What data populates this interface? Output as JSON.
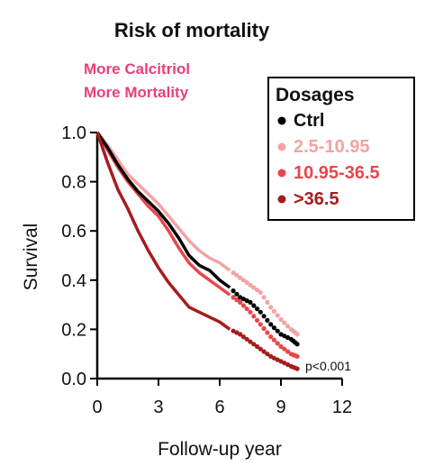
{
  "chart_data": {
    "type": "line",
    "title": "Risk of mortality",
    "annotation": [
      "More Calcitriol",
      "More Mortality"
    ],
    "annotation_color": "#e8417a",
    "xlabel": "Follow-up year",
    "ylabel": "Survival",
    "xlim": [
      0,
      12
    ],
    "ylim": [
      0,
      1.0
    ],
    "x_ticks": [
      0,
      3,
      6,
      9,
      12
    ],
    "x_tick_labels": [
      "0",
      "3",
      "6",
      "9",
      "12"
    ],
    "y_ticks": [
      0.0,
      0.2,
      0.4,
      0.6,
      0.8,
      1.0
    ],
    "y_tick_labels": [
      "0.0",
      "0.2",
      "0.4",
      "0.6",
      "0.8",
      "1.0"
    ],
    "legend_title": "Dosages",
    "legend_position": "top-right",
    "p_value": "p<0.001",
    "grid": false,
    "series": [
      {
        "name": "Ctrl",
        "color": "#000000",
        "points": [
          [
            0,
            1.0
          ],
          [
            0.5,
            0.94
          ],
          [
            1,
            0.87
          ],
          [
            1.5,
            0.81
          ],
          [
            2,
            0.76
          ],
          [
            2.5,
            0.72
          ],
          [
            3,
            0.68
          ],
          [
            3.5,
            0.63
          ],
          [
            4,
            0.57
          ],
          [
            4.5,
            0.5
          ],
          [
            5,
            0.46
          ],
          [
            5.5,
            0.44
          ],
          [
            6,
            0.4
          ],
          [
            6.5,
            0.37
          ],
          [
            7,
            0.33
          ],
          [
            7.5,
            0.31
          ],
          [
            8,
            0.27
          ],
          [
            8.5,
            0.22
          ],
          [
            9,
            0.18
          ],
          [
            9.5,
            0.16
          ],
          [
            9.8,
            0.14
          ]
        ]
      },
      {
        "name": "2.5-10.95",
        "color": "#f4a3a3",
        "points": [
          [
            0,
            1.0
          ],
          [
            0.5,
            0.95
          ],
          [
            1,
            0.89
          ],
          [
            1.5,
            0.83
          ],
          [
            2,
            0.79
          ],
          [
            2.5,
            0.75
          ],
          [
            3,
            0.71
          ],
          [
            3.5,
            0.66
          ],
          [
            4,
            0.61
          ],
          [
            4.5,
            0.56
          ],
          [
            5,
            0.52
          ],
          [
            5.5,
            0.49
          ],
          [
            6,
            0.47
          ],
          [
            6.5,
            0.44
          ],
          [
            7,
            0.41
          ],
          [
            7.5,
            0.38
          ],
          [
            8,
            0.35
          ],
          [
            8.5,
            0.29
          ],
          [
            9,
            0.24
          ],
          [
            9.5,
            0.2
          ],
          [
            9.8,
            0.18
          ]
        ]
      },
      {
        "name": "10.95-36.5",
        "color": "#e8474a",
        "points": [
          [
            0,
            1.0
          ],
          [
            0.5,
            0.93
          ],
          [
            1,
            0.86
          ],
          [
            1.5,
            0.8
          ],
          [
            2,
            0.75
          ],
          [
            2.5,
            0.7
          ],
          [
            3,
            0.66
          ],
          [
            3.5,
            0.6
          ],
          [
            4,
            0.53
          ],
          [
            4.5,
            0.47
          ],
          [
            5,
            0.43
          ],
          [
            5.5,
            0.4
          ],
          [
            6,
            0.37
          ],
          [
            6.5,
            0.34
          ],
          [
            7,
            0.31
          ],
          [
            7.5,
            0.27
          ],
          [
            8,
            0.22
          ],
          [
            8.5,
            0.17
          ],
          [
            9,
            0.13
          ],
          [
            9.5,
            0.1
          ],
          [
            9.8,
            0.09
          ]
        ]
      },
      {
        "name": ">36.5",
        "color": "#a61c1c",
        "points": [
          [
            0,
            1.0
          ],
          [
            0.5,
            0.88
          ],
          [
            1,
            0.77
          ],
          [
            1.5,
            0.69
          ],
          [
            2,
            0.6
          ],
          [
            2.5,
            0.52
          ],
          [
            3,
            0.45
          ],
          [
            3.5,
            0.39
          ],
          [
            4,
            0.34
          ],
          [
            4.5,
            0.29
          ],
          [
            5,
            0.27
          ],
          [
            5.5,
            0.25
          ],
          [
            6,
            0.23
          ],
          [
            6.5,
            0.2
          ],
          [
            7,
            0.18
          ],
          [
            7.5,
            0.15
          ],
          [
            8,
            0.12
          ],
          [
            8.5,
            0.09
          ],
          [
            9,
            0.07
          ],
          [
            9.5,
            0.05
          ],
          [
            9.8,
            0.04
          ]
        ]
      }
    ]
  }
}
